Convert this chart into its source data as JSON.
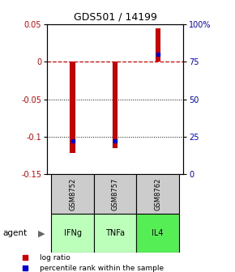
{
  "title": "GDS501 / 14199",
  "samples": [
    "GSM8752",
    "GSM8757",
    "GSM8762"
  ],
  "agents": [
    "IFNg",
    "TNFa",
    "IL4"
  ],
  "log_ratios": [
    -0.122,
    -0.115,
    0.045
  ],
  "percentile_ranks": [
    0.22,
    0.22,
    0.8
  ],
  "bar_color": "#cc0000",
  "percentile_color": "#0000cc",
  "ylim_left": [
    -0.15,
    0.05
  ],
  "yticks_left": [
    -0.15,
    -0.1,
    -0.05,
    0,
    0.05
  ],
  "ytick_labels_left": [
    "-0.15",
    "-0.1",
    "-0.05",
    "0",
    "0.05"
  ],
  "yticks_right": [
    0,
    0.25,
    0.5,
    0.75,
    1.0
  ],
  "ytick_labels_right": [
    "0",
    "25",
    "50",
    "75",
    "100%"
  ],
  "zero_line_color": "#cc0000",
  "grid_color": "#000000",
  "agent_colors": [
    "#bbffbb",
    "#bbffbb",
    "#55ee55"
  ],
  "sample_box_color": "#cccccc",
  "bar_width": 0.12
}
